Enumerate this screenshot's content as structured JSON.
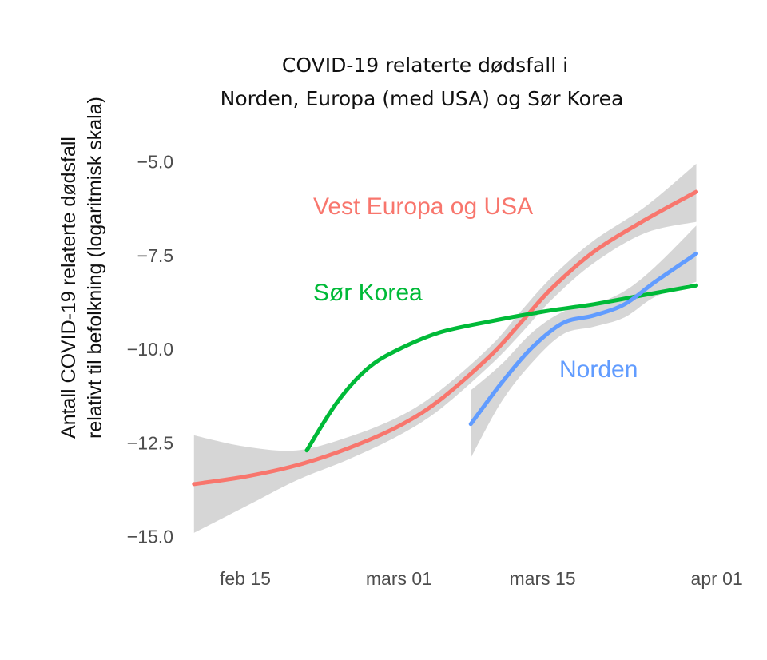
{
  "chart_data": {
    "type": "line",
    "title_lines": [
      "COVID-19 relaterte dødsfall i",
      "Norden, Europa (med USA) og Sør Korea"
    ],
    "ylabel_lines": [
      "Antall COVID-19 relaterte dødsfall",
      "relativt til befolkning (logaritmisk skala)"
    ],
    "xlabel": "",
    "x_ticks": [
      {
        "date": "2020-02-15",
        "label": "feb 15"
      },
      {
        "date": "2020-03-01",
        "label": "mars 01"
      },
      {
        "date": "2020-03-15",
        "label": "mars 15"
      },
      {
        "date": "2020-04-01",
        "label": "apr 01"
      }
    ],
    "y_ticks": [
      -5.0,
      -7.5,
      -10.0,
      -12.5,
      -15.0
    ],
    "y_tick_labels": [
      "−5.0",
      "−7.5",
      "−10.0",
      "−12.5",
      "−15.0"
    ],
    "xlim": [
      "2020-02-09",
      "2020-04-02"
    ],
    "ylim": [
      -15.5,
      -4.2
    ],
    "grid": false,
    "legend": "none",
    "series": [
      {
        "name": "Vest Europa og USA",
        "color": "#f8766d",
        "label_color": "#f8766d",
        "x": [
          "2020-02-10",
          "2020-02-15",
          "2020-02-20",
          "2020-02-25",
          "2020-03-01",
          "2020-03-05",
          "2020-03-10",
          "2020-03-13",
          "2020-03-16",
          "2020-03-20",
          "2020-03-25",
          "2020-03-30"
        ],
        "y": [
          -13.6,
          -13.4,
          -13.1,
          -12.65,
          -12.05,
          -11.35,
          -10.15,
          -9.25,
          -8.35,
          -7.4,
          -6.55,
          -5.8
        ],
        "ci_lower": [
          -14.9,
          -14.2,
          -13.5,
          -12.95,
          -12.3,
          -11.6,
          -10.4,
          -9.55,
          -8.65,
          -7.7,
          -6.9,
          -6.6
        ],
        "ci_upper": [
          -12.3,
          -12.6,
          -12.7,
          -12.35,
          -11.8,
          -11.1,
          -9.9,
          -8.95,
          -8.05,
          -7.1,
          -6.2,
          -5.05
        ]
      },
      {
        "name": "Sør Korea",
        "color": "#00ba38",
        "label_color": "#00ba38",
        "x": [
          "2020-02-21",
          "2020-02-24",
          "2020-02-27",
          "2020-03-01",
          "2020-03-05",
          "2020-03-10",
          "2020-03-15",
          "2020-03-20",
          "2020-03-25",
          "2020-03-30"
        ],
        "y": [
          -12.7,
          -11.4,
          -10.5,
          -10.0,
          -9.55,
          -9.25,
          -9.0,
          -8.8,
          -8.55,
          -8.3
        ]
      },
      {
        "name": "Norden",
        "color": "#619cff",
        "label_color": "#619cff",
        "x": [
          "2020-03-08",
          "2020-03-11",
          "2020-03-14",
          "2020-03-17",
          "2020-03-20",
          "2020-03-23",
          "2020-03-26",
          "2020-03-30"
        ],
        "y": [
          -12.0,
          -10.9,
          -9.95,
          -9.3,
          -9.1,
          -8.8,
          -8.2,
          -7.45
        ],
        "ci_lower": [
          -12.9,
          -11.4,
          -10.35,
          -9.6,
          -9.4,
          -9.15,
          -8.6,
          -8.2
        ],
        "ci_upper": [
          -11.1,
          -10.4,
          -9.55,
          -9.0,
          -8.8,
          -8.45,
          -7.8,
          -6.7
        ]
      }
    ]
  }
}
